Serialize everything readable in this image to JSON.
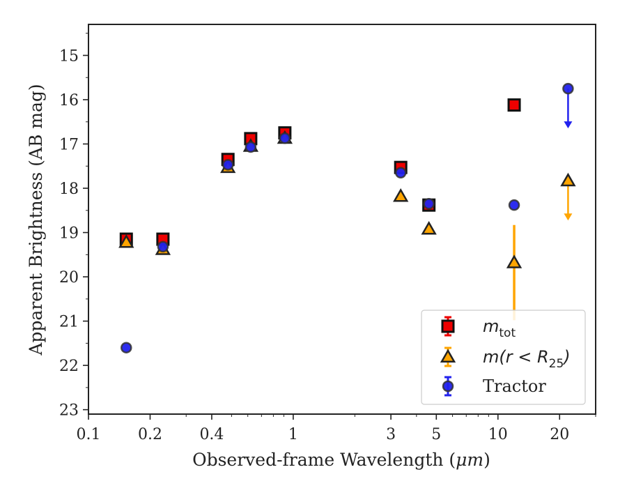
{
  "chart_data": {
    "type": "scatter",
    "title": "",
    "xlabel_prefix": "Observed-frame Wavelength (",
    "xlabel_unit": "μm",
    "xlabel_suffix": ")",
    "ylabel": "Apparent Brightness (AB mag)",
    "xscale": "log",
    "xlim": [
      0.1,
      30
    ],
    "ylim": [
      23.1,
      14.3
    ],
    "y_inverted": true,
    "x_ticks": [
      {
        "value": 0.1,
        "label": "0.1"
      },
      {
        "value": 0.2,
        "label": "0.2"
      },
      {
        "value": 0.4,
        "label": "0.4"
      },
      {
        "value": 1,
        "label": "1"
      },
      {
        "value": 3,
        "label": "3"
      },
      {
        "value": 5,
        "label": "5"
      },
      {
        "value": 10,
        "label": "10"
      },
      {
        "value": 20,
        "label": "20"
      }
    ],
    "y_ticks": [
      15,
      16,
      17,
      18,
      19,
      20,
      21,
      22,
      23
    ],
    "grid": false,
    "legend_position": "bottom-right",
    "series": [
      {
        "name": "m_tot",
        "marker": "square",
        "color": "#ee0000",
        "edge": "#111111",
        "points": [
          {
            "x": 0.153,
            "y": 19.15
          },
          {
            "x": 0.231,
            "y": 19.15
          },
          {
            "x": 0.48,
            "y": 17.35
          },
          {
            "x": 0.62,
            "y": 16.88
          },
          {
            "x": 0.91,
            "y": 16.75
          },
          {
            "x": 3.35,
            "y": 17.53
          },
          {
            "x": 4.6,
            "y": 18.38
          },
          {
            "x": 12.0,
            "y": 16.12
          }
        ]
      },
      {
        "name": "m(r<R25)",
        "marker": "triangle",
        "color": "#ffa500",
        "edge": "#222222",
        "points": [
          {
            "x": 0.153,
            "y": 19.22
          },
          {
            "x": 0.231,
            "y": 19.38
          },
          {
            "x": 0.48,
            "y": 17.53
          },
          {
            "x": 0.62,
            "y": 17.05
          },
          {
            "x": 0.91,
            "y": 16.87
          },
          {
            "x": 3.35,
            "y": 18.18
          },
          {
            "x": 4.6,
            "y": 18.92
          },
          {
            "x": 12.0,
            "y": 19.68,
            "err_low": 0.85,
            "err_high": 1.3
          },
          {
            "x": 22.0,
            "y": 17.83,
            "upper_limit": true
          }
        ]
      },
      {
        "name": "Tractor",
        "marker": "circle",
        "color": "#2222ee",
        "edge": "#333333",
        "points": [
          {
            "x": 0.153,
            "y": 21.6
          },
          {
            "x": 0.231,
            "y": 19.32
          },
          {
            "x": 0.48,
            "y": 17.47
          },
          {
            "x": 0.62,
            "y": 17.07
          },
          {
            "x": 0.91,
            "y": 16.87
          },
          {
            "x": 3.35,
            "y": 17.65
          },
          {
            "x": 4.6,
            "y": 18.35
          },
          {
            "x": 12.0,
            "y": 18.38
          },
          {
            "x": 22.0,
            "y": 15.75,
            "upper_limit": true
          }
        ]
      }
    ],
    "legend": [
      {
        "base": "m",
        "sub": "tot",
        "rest": ""
      },
      {
        "base": "m(r < R",
        "sub": "25",
        "rest": ")"
      },
      {
        "base": "Tractor",
        "sub": "",
        "rest": ""
      }
    ]
  }
}
